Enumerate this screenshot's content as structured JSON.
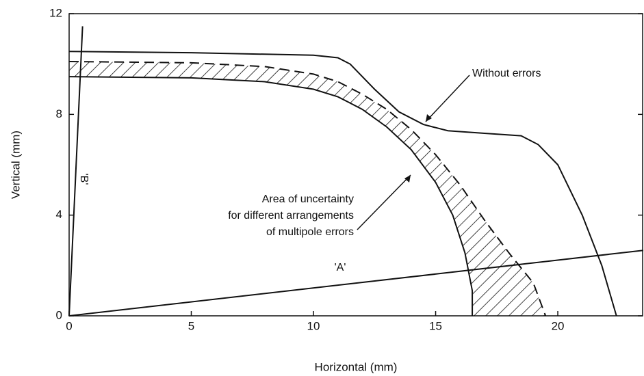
{
  "chart_data": {
    "type": "line",
    "xlabel": "Horizontal (mm)",
    "ylabel": "Vertical (mm)",
    "xlim": [
      0,
      23.5
    ],
    "ylim": [
      0,
      12
    ],
    "xticks": [
      0,
      5,
      10,
      15,
      20
    ],
    "yticks": [
      0,
      4,
      8,
      12
    ],
    "annotations": [
      "Without errors",
      "Area of uncertainty",
      "for different arrangements",
      "of multipole errors",
      "'A'",
      "'B'"
    ],
    "series": [
      {
        "color": "#111111",
        "dash": false,
        "x": [
          0,
          5,
          10,
          11,
          11.5,
          12.5,
          13.5,
          14.5,
          15.5,
          17,
          18.5,
          19.2,
          20,
          21,
          21.8,
          22.4
        ],
        "values": [
          10.5,
          10.45,
          10.35,
          10.25,
          10,
          9.0,
          8.1,
          7.6,
          7.35,
          7.25,
          7.15,
          6.8,
          6,
          4,
          2,
          0
        ]
      },
      {
        "color": "#111111",
        "dash": false,
        "x": [
          0,
          5,
          8,
          10,
          11,
          12,
          13,
          14,
          15,
          15.7,
          16.2,
          16.5,
          16.5
        ],
        "values": [
          9.5,
          9.45,
          9.3,
          9.0,
          8.7,
          8.2,
          7.5,
          6.6,
          5.3,
          4,
          2.5,
          1,
          0
        ]
      },
      {
        "color": "#111111",
        "dash": true,
        "x": [
          0,
          5,
          8,
          10,
          11,
          12,
          13,
          14,
          15,
          16,
          17,
          18,
          19,
          19.5
        ],
        "values": [
          10.1,
          10.05,
          9.9,
          9.6,
          9.3,
          8.8,
          8.2,
          7.4,
          6.4,
          5.2,
          3.8,
          2.5,
          1.3,
          0
        ]
      },
      {
        "color": "#111111",
        "dash": false,
        "x": [
          0,
          23.5
        ],
        "values": [
          0,
          2.6
        ]
      },
      {
        "color": "#111111",
        "dash": false,
        "x": [
          0,
          0.55
        ],
        "values": [
          0,
          11.5
        ]
      }
    ]
  }
}
